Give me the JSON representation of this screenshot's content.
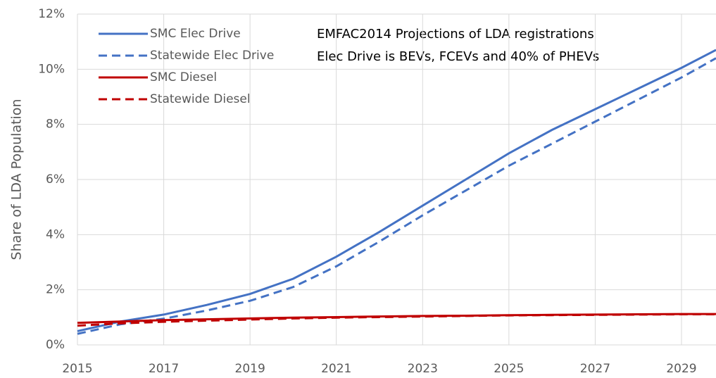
{
  "chart_data": {
    "type": "line",
    "ylabel": "Share of LDA Population",
    "annotations": [
      "EMFAC2014 Projections of LDA registrations",
      "Elec Drive is BEVs, FCEVs and 40% of PHEVs"
    ],
    "x": [
      2015,
      2016,
      2017,
      2018,
      2019,
      2020,
      2021,
      2022,
      2023,
      2024,
      2025,
      2026,
      2027,
      2028,
      2029,
      2029.8
    ],
    "series": [
      {
        "name": "SMC Elec Drive",
        "color": "#4472c4",
        "dashed": false,
        "values": [
          0.5,
          0.85,
          1.1,
          1.45,
          1.85,
          2.4,
          3.2,
          4.1,
          5.05,
          6.0,
          6.95,
          7.8,
          8.55,
          9.3,
          10.05,
          10.7
        ]
      },
      {
        "name": "Statewide Elec Drive",
        "color": "#4472c4",
        "dashed": true,
        "values": [
          0.4,
          0.75,
          0.95,
          1.25,
          1.6,
          2.1,
          2.85,
          3.75,
          4.7,
          5.6,
          6.5,
          7.3,
          8.1,
          8.9,
          9.7,
          10.4
        ]
      },
      {
        "name": "SMC Diesel",
        "color": "#c00000",
        "dashed": false,
        "values": [
          0.8,
          0.85,
          0.9,
          0.93,
          0.96,
          0.99,
          1.01,
          1.03,
          1.05,
          1.06,
          1.08,
          1.09,
          1.1,
          1.11,
          1.12,
          1.12
        ]
      },
      {
        "name": "Statewide Diesel",
        "color": "#c00000",
        "dashed": true,
        "values": [
          0.7,
          0.78,
          0.84,
          0.88,
          0.92,
          0.96,
          0.99,
          1.01,
          1.03,
          1.05,
          1.07,
          1.08,
          1.09,
          1.1,
          1.11,
          1.11
        ]
      }
    ],
    "xlim": [
      2015,
      2029.8
    ],
    "xticks": [
      2015,
      2017,
      2019,
      2021,
      2023,
      2025,
      2027,
      2029
    ],
    "ylim": [
      0,
      12
    ],
    "yticks": [
      {
        "value": 0,
        "label": "0%"
      },
      {
        "value": 2,
        "label": "2%"
      },
      {
        "value": 4,
        "label": "4%"
      },
      {
        "value": 6,
        "label": "6%"
      },
      {
        "value": 8,
        "label": "8%"
      },
      {
        "value": 10,
        "label": "10%"
      },
      {
        "value": 12,
        "label": "12%"
      }
    ],
    "grid": true
  }
}
